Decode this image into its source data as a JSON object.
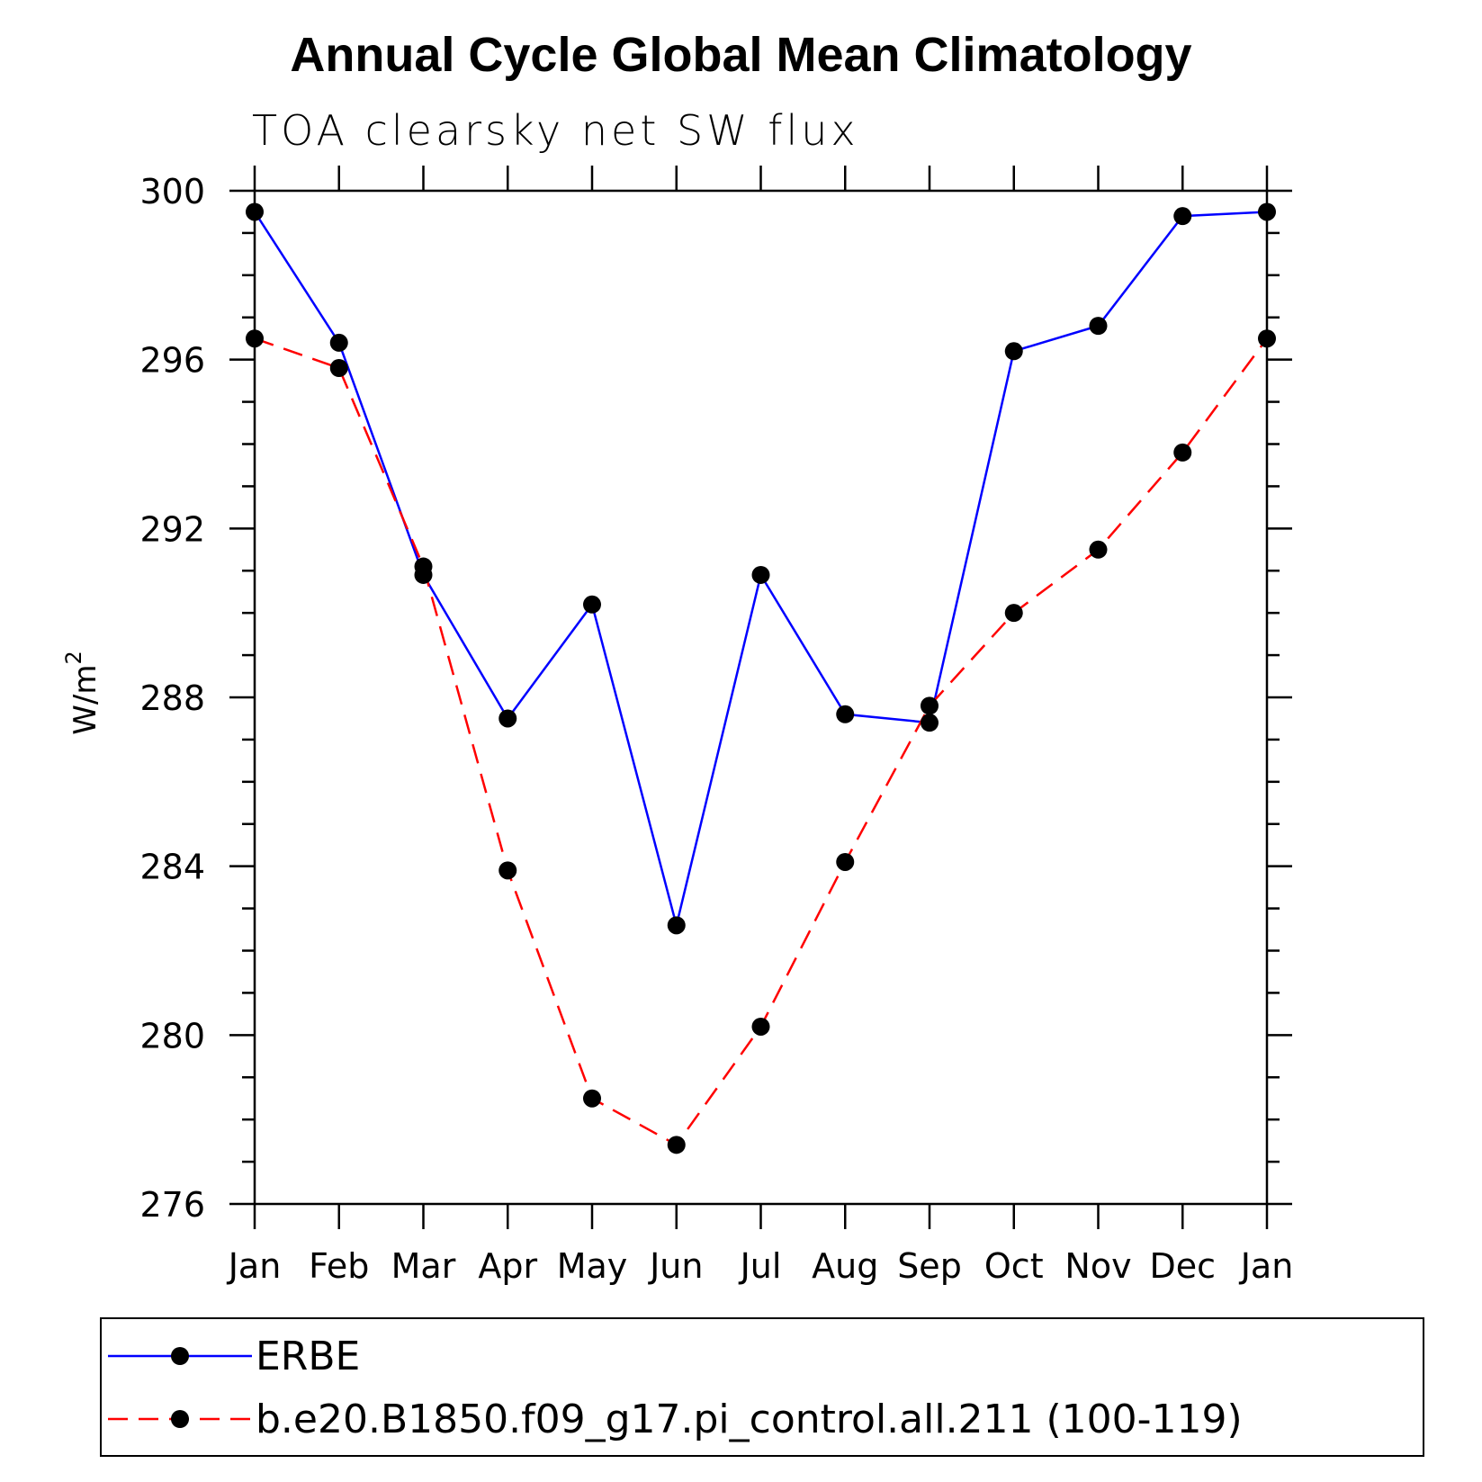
{
  "chart_data": {
    "type": "line",
    "title": "Annual Cycle Global Mean Climatology",
    "subtitle": "TOA clearsky net SW flux",
    "ylabel": "W/m",
    "ylabel_superscript": "2",
    "xlabel": "",
    "categories": [
      "Jan",
      "Feb",
      "Mar",
      "Apr",
      "May",
      "Jun",
      "Jul",
      "Aug",
      "Sep",
      "Oct",
      "Nov",
      "Dec",
      "Jan"
    ],
    "ylim": [
      276,
      300
    ],
    "yticks": [
      "276",
      "280",
      "284",
      "288",
      "292",
      "296",
      "300"
    ],
    "series": [
      {
        "name": "ERBE",
        "color": "#0000ff",
        "dash": "solid",
        "values": [
          299.5,
          296.4,
          290.9,
          287.5,
          290.2,
          282.6,
          290.9,
          287.6,
          287.4,
          296.2,
          296.8,
          299.4,
          299.5
        ]
      },
      {
        "name": "b.e20.B1850.f09_g17.pi_control.all.211 (100-119)",
        "color": "#ff0000",
        "dash": "dashed",
        "values": [
          296.5,
          295.8,
          291.1,
          283.9,
          278.5,
          277.4,
          280.2,
          284.1,
          287.8,
          290.0,
          291.5,
          293.8,
          296.5
        ]
      }
    ],
    "marker_color": "#000000",
    "grid": false,
    "legend_position": "bottom"
  }
}
